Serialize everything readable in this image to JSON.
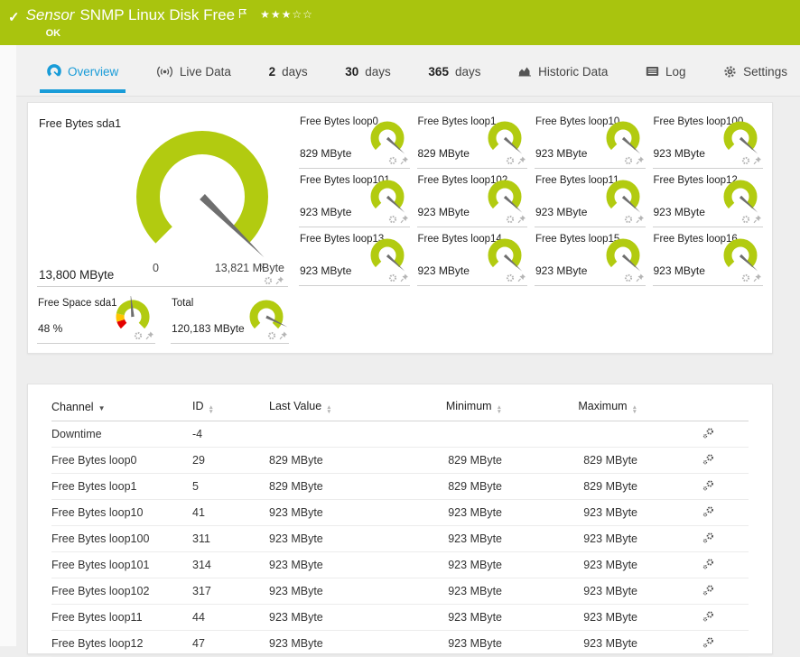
{
  "header": {
    "kind_label": "Sensor",
    "title": "SNMP Linux Disk Free",
    "status": "OK",
    "stars_filled": "★★★",
    "stars_empty": "☆☆"
  },
  "icons": {
    "check": "✓",
    "sort_asc": "▲",
    "sort_desc": "▼"
  },
  "tabs": [
    {
      "label": "Overview",
      "active": true
    },
    {
      "label": "Live Data"
    },
    {
      "num": "2",
      "label": "days"
    },
    {
      "num": "30",
      "label": "days"
    },
    {
      "num": "365",
      "label": "days"
    },
    {
      "label": "Historic Data"
    },
    {
      "label": "Log"
    },
    {
      "label": "Settings"
    }
  ],
  "gauge_panel": {
    "main": {
      "title": "Free Bytes sda1",
      "value": "13,800 MByte",
      "min_label": "0",
      "max_label": "13,821 MByte",
      "avg_label": "x̄",
      "percent": 99.8
    },
    "tiles": [
      {
        "title": "Free Bytes loop0",
        "value": "829 MByte",
        "percent": 99
      },
      {
        "title": "Free Bytes loop1",
        "value": "829 MByte",
        "percent": 99
      },
      {
        "title": "Free Bytes loop10",
        "value": "923 MByte",
        "percent": 99
      },
      {
        "title": "Free Bytes loop100",
        "value": "923 MByte",
        "percent": 99
      },
      {
        "title": "Free Bytes loop101",
        "value": "923 MByte",
        "percent": 99
      },
      {
        "title": "Free Bytes loop102",
        "value": "923 MByte",
        "percent": 99
      },
      {
        "title": "Free Bytes loop11",
        "value": "923 MByte",
        "percent": 99
      },
      {
        "title": "Free Bytes loop12",
        "value": "923 MByte",
        "percent": 99
      },
      {
        "title": "Free Bytes loop13",
        "value": "923 MByte",
        "percent": 99
      },
      {
        "title": "Free Bytes loop14",
        "value": "923 MByte",
        "percent": 99
      },
      {
        "title": "Free Bytes loop15",
        "value": "923 MByte",
        "percent": 99
      },
      {
        "title": "Free Bytes loop16",
        "value": "923 MByte",
        "percent": 99
      }
    ],
    "extra_tiles": [
      {
        "title": "Free Space sda1",
        "value": "48 %",
        "percent": 48,
        "segments": [
          {
            "color": "#e30000",
            "from": 0,
            "to": 0.1
          },
          {
            "color": "#ffc400",
            "from": 0.1,
            "to": 0.21
          },
          {
            "color": "#b2cb10",
            "from": 0.21,
            "to": 1
          }
        ]
      },
      {
        "title": "Total",
        "value": "120,183 MByte",
        "percent": 93
      }
    ]
  },
  "table": {
    "columns": [
      {
        "label": "Channel",
        "sorted": "desc"
      },
      {
        "label": "ID"
      },
      {
        "label": "Last Value"
      },
      {
        "label": "Minimum"
      },
      {
        "label": "Maximum"
      }
    ],
    "rows": [
      [
        "Downtime",
        "-4",
        "",
        "",
        ""
      ],
      [
        "Free Bytes loop0",
        "29",
        "829 MByte",
        "829 MByte",
        "829 MByte"
      ],
      [
        "Free Bytes loop1",
        "5",
        "829 MByte",
        "829 MByte",
        "829 MByte"
      ],
      [
        "Free Bytes loop10",
        "41",
        "923 MByte",
        "923 MByte",
        "923 MByte"
      ],
      [
        "Free Bytes loop100",
        "311",
        "923 MByte",
        "923 MByte",
        "923 MByte"
      ],
      [
        "Free Bytes loop101",
        "314",
        "923 MByte",
        "923 MByte",
        "923 MByte"
      ],
      [
        "Free Bytes loop102",
        "317",
        "923 MByte",
        "923 MByte",
        "923 MByte"
      ],
      [
        "Free Bytes loop11",
        "44",
        "923 MByte",
        "923 MByte",
        "923 MByte"
      ],
      [
        "Free Bytes loop12",
        "47",
        "923 MByte",
        "923 MByte",
        "923 MByte"
      ]
    ]
  },
  "colors": {
    "ok_green": "#a9c40e",
    "gauge_green": "#b2cb10",
    "accent_blue": "#199cd8",
    "needle_gray": "#6e6e6e",
    "warn_yellow": "#ffc400",
    "error_red": "#e30000"
  }
}
